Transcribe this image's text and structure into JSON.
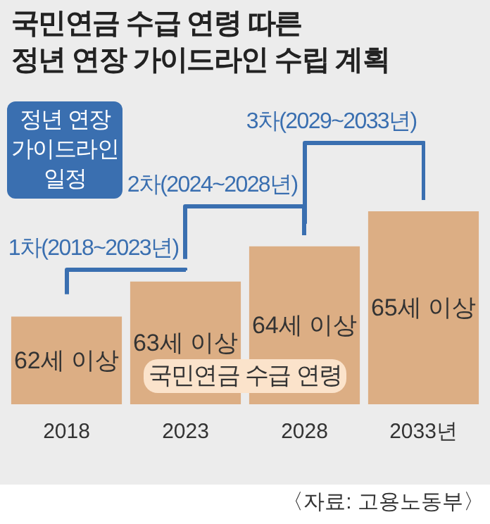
{
  "chart_data": {
    "type": "bar",
    "title": "국민연금 수급 연령 따른\n정년 연장 가이드라인 수립 계획",
    "categories": [
      "2018",
      "2023",
      "2028",
      "2033년"
    ],
    "values": [
      62,
      63,
      64,
      65
    ],
    "ylim": [
      59.5,
      65
    ],
    "tick_labels": "x",
    "color": "#dcae84",
    "value_labels": [
      "62세 이상",
      "63세 이상",
      "64세 이상",
      "65세 이상"
    ],
    "annotations": [
      "정년 연장\n가이드라인\n일정",
      "1차(2018~2023년)",
      "2차(2024~2028년)",
      "3차(2029~2033년)",
      "국민연금 수급 연령",
      "〈자료: 고용노동부〉"
    ]
  }
}
